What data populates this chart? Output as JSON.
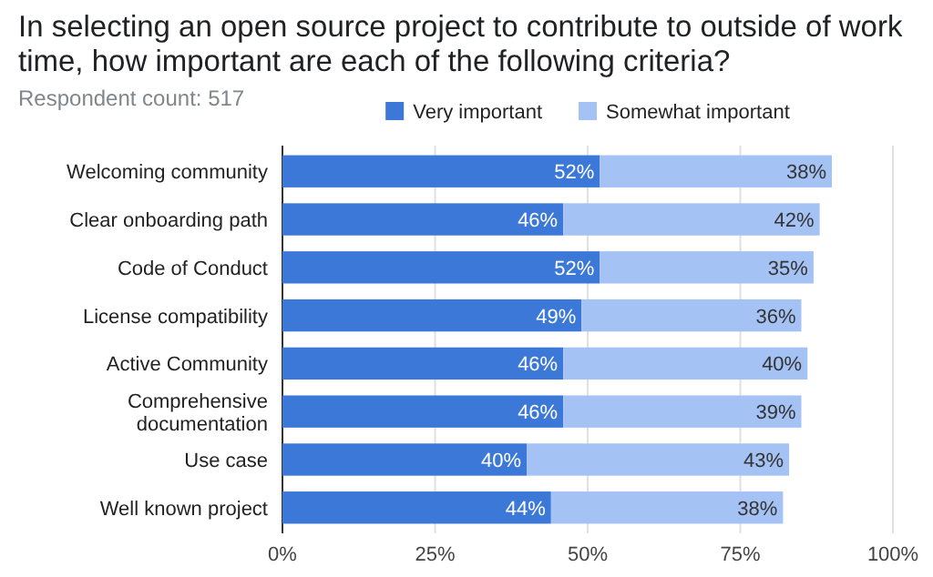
{
  "chart_data": {
    "type": "bar",
    "orientation": "horizontal",
    "stacked": true,
    "title": "In selecting an open source project to contribute to outside of work time, how important are each of the following criteria?",
    "subtitle": "Respondent count: 517",
    "categories": [
      "Welcoming community",
      "Clear onboarding path",
      "Code of Conduct",
      "License compatibility",
      "Active Community",
      "Comprehensive documentation",
      "Use case",
      "Well known project"
    ],
    "series": [
      {
        "name": "Very important",
        "color": "#3c78d8",
        "values": [
          52,
          46,
          52,
          49,
          46,
          46,
          40,
          44
        ],
        "value_labels": [
          "52%",
          "46%",
          "52%",
          "49%",
          "46%",
          "46%",
          "40%",
          "44%"
        ]
      },
      {
        "name": "Somewhat important",
        "color": "#a4c2f4",
        "values": [
          38,
          42,
          35,
          36,
          40,
          39,
          43,
          38
        ],
        "value_labels": [
          "38%",
          "42%",
          "35%",
          "36%",
          "40%",
          "39%",
          "43%",
          "38%"
        ]
      }
    ],
    "xlim": [
      0,
      100
    ],
    "xticks": [
      {
        "value": 0,
        "label": "0%"
      },
      {
        "value": 25,
        "label": "25%"
      },
      {
        "value": 50,
        "label": "50%"
      },
      {
        "value": 75,
        "label": "75%"
      },
      {
        "value": 100,
        "label": "100%"
      }
    ],
    "grid": "x",
    "legend": "top"
  }
}
